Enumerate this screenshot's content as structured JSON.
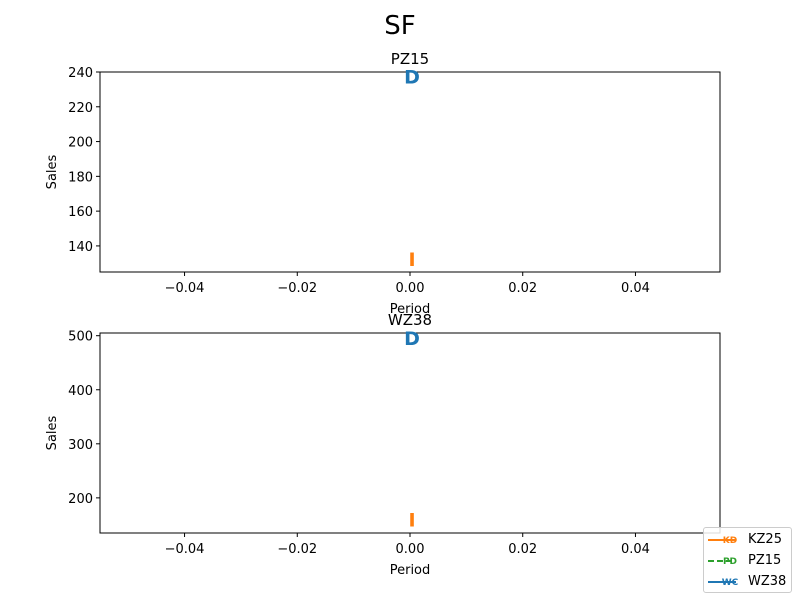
{
  "chart_data": {
    "title": "SF",
    "type": "line",
    "panels": [
      {
        "title": "PZ15",
        "xlabel": "Period",
        "ylabel": "Sales",
        "xlim": [
          -0.055,
          0.055
        ],
        "ylim": [
          125,
          240
        ],
        "xticks": [
          -0.04,
          -0.02,
          0.0,
          0.02,
          0.04
        ],
        "xtick_labels": [
          "−0.04",
          "−0.02",
          "0.00",
          "0.02",
          "0.04"
        ],
        "yticks": [
          140,
          160,
          180,
          200,
          220,
          240
        ],
        "ytick_labels": [
          "140",
          "160",
          "180",
          "200",
          "220",
          "240"
        ],
        "markers": [
          {
            "glyph": "D",
            "x": 0.0,
            "y": 238,
            "color": "#1f77b4"
          },
          {
            "glyph": "I",
            "x": 0.0,
            "y": 133,
            "color": "#ff7f0e"
          }
        ]
      },
      {
        "title": "WZ38",
        "xlabel": "Period",
        "ylabel": "Sales",
        "xlim": [
          -0.055,
          0.055
        ],
        "ylim": [
          135,
          505
        ],
        "xticks": [
          -0.04,
          -0.02,
          0.0,
          0.02,
          0.04
        ],
        "xtick_labels": [
          "−0.04",
          "−0.02",
          "0.00",
          "0.02",
          "0.04"
        ],
        "yticks": [
          200,
          300,
          400,
          500
        ],
        "ytick_labels": [
          "200",
          "300",
          "400",
          "500"
        ],
        "markers": [
          {
            "glyph": "D",
            "x": 0.0,
            "y": 498,
            "color": "#1f77b4"
          },
          {
            "glyph": "I",
            "x": 0.0,
            "y": 162,
            "color": "#ff7f0e"
          }
        ]
      }
    ],
    "legend": {
      "position": "bottom-right",
      "entries": [
        {
          "label": "KZ25",
          "color": "#ff7f0e",
          "linestyle": "solid",
          "marker": "KD"
        },
        {
          "label": "PZ15",
          "color": "#2ca02c",
          "linestyle": "dashed",
          "marker": "PD"
        },
        {
          "label": "WZ38",
          "color": "#1f77b4",
          "linestyle": "solid",
          "marker": "WC"
        }
      ]
    }
  }
}
